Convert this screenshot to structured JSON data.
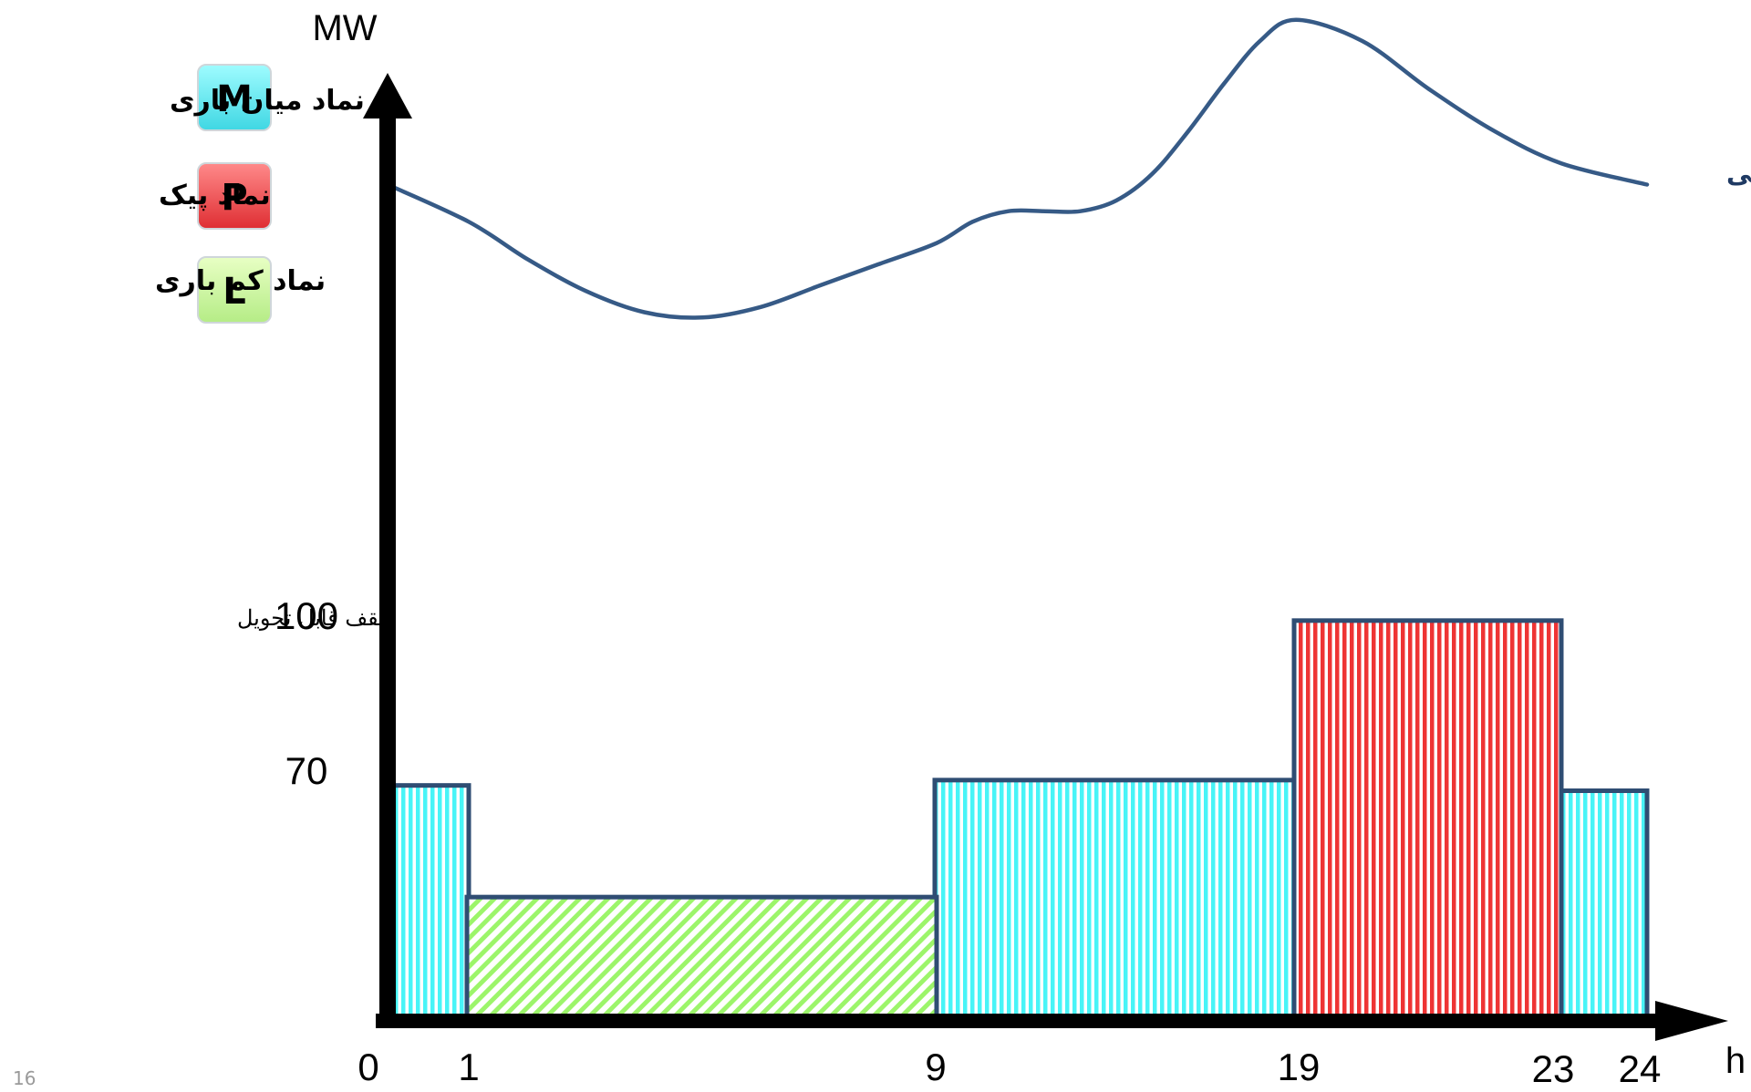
{
  "colors": {
    "mid": "#48f4f7",
    "peak": "#ee3434",
    "low": "#9cf56a",
    "bar_border": "#2f4d73",
    "curve": "#365a86",
    "axis": "#000000"
  },
  "legend": [
    {
      "letter": "M",
      "label": "نماد میان باری",
      "kind": "mid",
      "icon": "mid-load-symbol-icon"
    },
    {
      "letter": "P",
      "label": "نماد پیک",
      "kind": "peak",
      "icon": "peak-symbol-icon"
    },
    {
      "letter": "L",
      "label": "نماد کم باری",
      "kind": "low",
      "icon": "low-load-symbol-icon"
    }
  ],
  "page_number": "16",
  "chart_data": {
    "type": "bar",
    "xlabel": "h",
    "ylabel": "MW",
    "xlim": [
      0,
      24
    ],
    "ylim": [
      0,
      210
    ],
    "x_ticks": [
      "0",
      "1",
      "9",
      "19",
      "23",
      "24"
    ],
    "y_ticks": [
      "70",
      "100"
    ],
    "capacity_label": "سقف قابل تحویل",
    "series": [
      {
        "name": "نماد میان باری",
        "kind": "mid",
        "segments": [
          {
            "x0": 0,
            "x1": 1,
            "y": 68
          },
          {
            "x0": 9,
            "x1": 19,
            "y": 69
          },
          {
            "x0": 23,
            "x1": 24,
            "y": 67
          }
        ]
      },
      {
        "name": "نماد کم باری",
        "kind": "low",
        "segments": [
          {
            "x0": 1,
            "x1": 9,
            "y": 47
          }
        ]
      },
      {
        "name": "نماد پیک",
        "kind": "peak",
        "segments": [
          {
            "x0": 19,
            "x1": 23,
            "y": 99
          }
        ]
      }
    ],
    "curve": {
      "name": "مصرف واقعی",
      "points": [
        [
          0,
          181
        ],
        [
          1,
          174
        ],
        [
          2,
          167
        ],
        [
          3,
          161
        ],
        [
          4,
          157
        ],
        [
          5,
          156
        ],
        [
          6,
          158
        ],
        [
          7,
          162
        ],
        [
          8,
          166
        ],
        [
          9,
          170
        ],
        [
          10,
          174
        ],
        [
          11,
          176
        ],
        [
          12,
          176
        ],
        [
          13,
          176
        ],
        [
          14,
          178
        ],
        [
          15,
          183
        ],
        [
          16,
          191
        ],
        [
          17,
          200
        ],
        [
          18,
          208
        ],
        [
          19,
          212
        ],
        [
          20,
          208
        ],
        [
          21,
          199
        ],
        [
          22,
          191
        ],
        [
          23,
          185
        ],
        [
          24,
          181
        ]
      ]
    }
  }
}
